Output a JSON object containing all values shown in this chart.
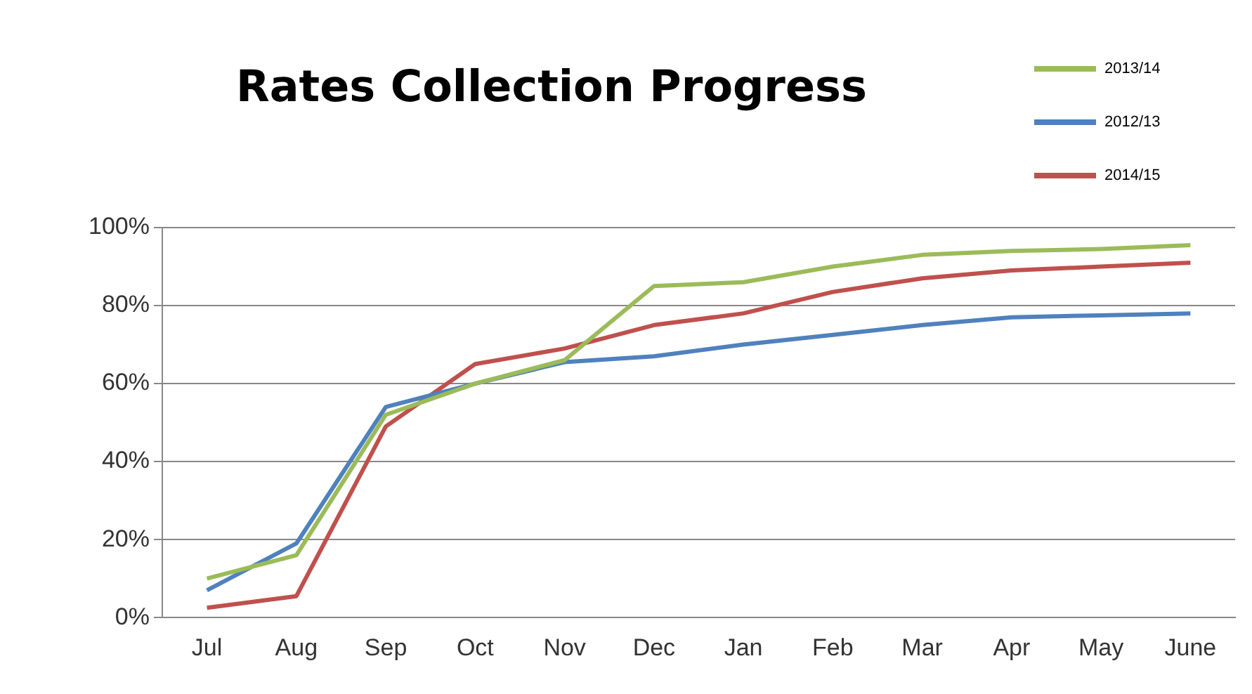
{
  "chart_data": {
    "type": "line",
    "title": "Rates Collection Progress",
    "categories": [
      "Jul",
      "Aug",
      "Sep",
      "Oct",
      "Nov",
      "Dec",
      "Jan",
      "Feb",
      "Mar",
      "Apr",
      "May",
      "June"
    ],
    "series": [
      {
        "name": "2013/14",
        "color": "#9bbb59",
        "values": [
          10,
          16,
          52,
          60,
          66,
          85,
          86,
          90,
          93,
          94,
          94.5,
          95.5
        ]
      },
      {
        "name": "2012/13",
        "color": "#4f81bd",
        "values": [
          7,
          19,
          54,
          60,
          65.5,
          67,
          70,
          72.5,
          75,
          77,
          77.5,
          78
        ]
      },
      {
        "name": "2014/15",
        "color": "#c0504d",
        "values": [
          2.5,
          5.5,
          49,
          65,
          69,
          75,
          78,
          83.5,
          87,
          89,
          90,
          91
        ]
      }
    ],
    "ylim": [
      0,
      100
    ],
    "yticks": [
      {
        "value": 0,
        "label": "0%"
      },
      {
        "value": 20,
        "label": "20%"
      },
      {
        "value": 40,
        "label": "40%"
      },
      {
        "value": 60,
        "label": "60%"
      },
      {
        "value": 80,
        "label": "80%"
      },
      {
        "value": 100,
        "label": "100%"
      }
    ],
    "grid": "y",
    "legend": "top right",
    "marker": "none",
    "line_style": "solid"
  }
}
